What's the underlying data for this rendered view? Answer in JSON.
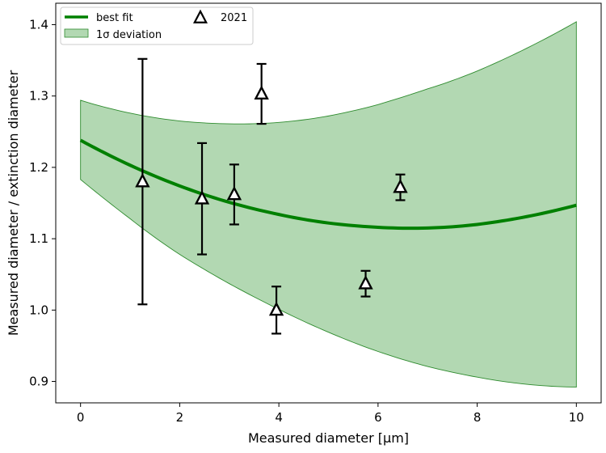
{
  "chart_data": {
    "type": "scatter",
    "xlabel": "Measured diameter [μm]",
    "ylabel": "Measured diameter / extinction diameter",
    "xlim": [
      -0.5,
      10.5
    ],
    "ylim": [
      0.87,
      1.43
    ],
    "x_ticks": [
      "0",
      "2",
      "4",
      "6",
      "8",
      "10"
    ],
    "y_ticks": [
      "0.9",
      "1.0",
      "1.1",
      "1.2",
      "1.3",
      "1.4"
    ],
    "grid": false,
    "legend_placement": "top-left",
    "series": [
      {
        "name": "best fit",
        "kind": "line",
        "color": "#008000",
        "x": [
          0,
          1,
          2,
          3,
          4,
          5,
          6,
          7,
          8,
          9,
          10
        ],
        "y": [
          1.238,
          1.203,
          1.174,
          1.151,
          1.134,
          1.122,
          1.116,
          1.115,
          1.12,
          1.131,
          1.147
        ]
      },
      {
        "name": "1σ deviation",
        "kind": "band",
        "color": "#b2d8b2",
        "edge_color": "#2e8b2e",
        "x": [
          0,
          1,
          2,
          3,
          4,
          5,
          6,
          7,
          8,
          9,
          10
        ],
        "upper": [
          1.294,
          1.276,
          1.265,
          1.261,
          1.263,
          1.272,
          1.288,
          1.31,
          1.335,
          1.367,
          1.404
        ],
        "lower": [
          1.183,
          1.128,
          1.078,
          1.037,
          1.001,
          0.969,
          0.942,
          0.921,
          0.906,
          0.896,
          0.892
        ]
      },
      {
        "name": "2021",
        "kind": "errorbar",
        "marker": "open-triangle",
        "color": "#000000",
        "x": [
          1.25,
          2.45,
          3.1,
          3.65,
          3.95,
          5.75,
          6.45
        ],
        "y": [
          1.18,
          1.156,
          1.162,
          1.303,
          1.0,
          1.037,
          1.172
        ],
        "yerr": [
          0.172,
          0.078,
          0.042,
          0.042,
          0.033,
          0.018,
          0.018
        ]
      }
    ]
  }
}
